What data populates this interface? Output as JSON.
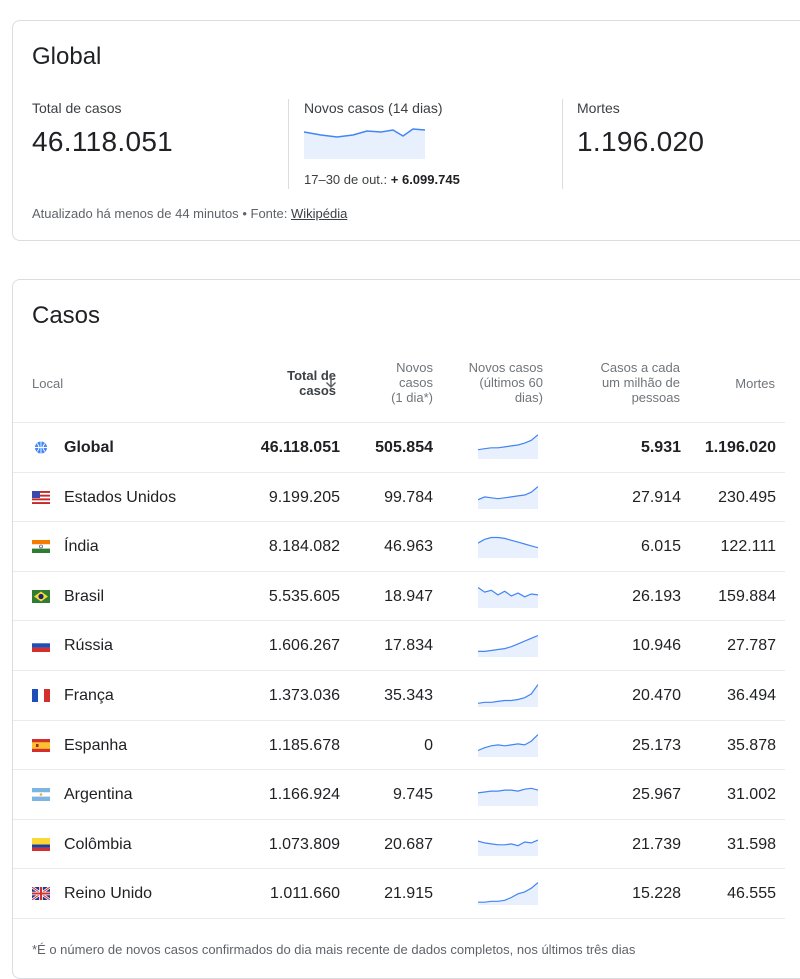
{
  "global_card": {
    "title": "Global",
    "total_label": "Total de casos",
    "total_value": "46.118.051",
    "new_label": "Novos casos (14 dias)",
    "new_range": "17–30 de out.:",
    "new_value": "+ 6.099.745",
    "deaths_label": "Mortes",
    "deaths_value": "1.196.020",
    "updated_text": "Atualizado há menos de 44 minutos",
    "separator": "•",
    "source_prefix": "Fonte:",
    "source_link": "Wikipédia"
  },
  "cases_card": {
    "title": "Casos",
    "headers": {
      "local": "Local",
      "total": [
        "Total de",
        "casos"
      ],
      "novos": [
        "Novos",
        "casos",
        "(1 dia*)"
      ],
      "novos60": [
        "Novos casos",
        "(últimos 60",
        "dias)"
      ],
      "per_million": [
        "Casos a cada",
        "um milhão de",
        "pessoas"
      ],
      "mortes": "Mortes"
    },
    "rows": [
      {
        "name": "Global",
        "total": "46.118.051",
        "new": "505.854",
        "per_million": "5.931",
        "deaths": "1.196.020",
        "flag": "globe-icon",
        "spark": [
          10,
          11,
          12,
          12,
          13,
          14,
          15,
          17,
          20,
          26
        ]
      },
      {
        "name": "Estados Unidos",
        "total": "9.199.205",
        "new": "99.784",
        "per_million": "27.914",
        "deaths": "230.495",
        "flag": "flag-us-icon",
        "spark": [
          10,
          13,
          12,
          11,
          12,
          13,
          14,
          15,
          18,
          24
        ]
      },
      {
        "name": "Índia",
        "total": "8.184.082",
        "new": "46.963",
        "per_million": "6.015",
        "deaths": "122.111",
        "flag": "flag-in-icon",
        "spark": [
          16,
          20,
          22,
          22,
          21,
          19,
          17,
          15,
          13,
          11
        ]
      },
      {
        "name": "Brasil",
        "total": "5.535.605",
        "new": "18.947",
        "per_million": "26.193",
        "deaths": "159.884",
        "flag": "flag-br-icon",
        "spark": [
          22,
          17,
          19,
          14,
          18,
          13,
          16,
          12,
          15,
          14
        ]
      },
      {
        "name": "Rússia",
        "total": "1.606.267",
        "new": "17.834",
        "per_million": "10.946",
        "deaths": "27.787",
        "flag": "flag-ru-icon",
        "spark": [
          6,
          6,
          7,
          8,
          9,
          11,
          14,
          17,
          20,
          23
        ]
      },
      {
        "name": "França",
        "total": "1.373.036",
        "new": "35.343",
        "per_million": "20.470",
        "deaths": "36.494",
        "flag": "flag-fr-icon",
        "spark": [
          4,
          5,
          5,
          6,
          7,
          7,
          8,
          10,
          14,
          24
        ]
      },
      {
        "name": "Espanha",
        "total": "1.185.678",
        "new": "0",
        "per_million": "25.173",
        "deaths": "35.878",
        "flag": "flag-es-icon",
        "spark": [
          7,
          10,
          12,
          13,
          12,
          13,
          14,
          13,
          17,
          24
        ]
      },
      {
        "name": "Argentina",
        "total": "1.166.924",
        "new": "9.745",
        "per_million": "25.967",
        "deaths": "31.002",
        "flag": "flag-ar-icon",
        "spark": [
          14,
          15,
          16,
          16,
          17,
          17,
          16,
          18,
          19,
          17
        ]
      },
      {
        "name": "Colômbia",
        "total": "1.073.809",
        "new": "20.687",
        "per_million": "21.739",
        "deaths": "31.598",
        "flag": "flag-co-icon",
        "spark": [
          16,
          14,
          13,
          12,
          12,
          13,
          11,
          15,
          14,
          17
        ]
      },
      {
        "name": "Reino Unido",
        "total": "1.011.660",
        "new": "21.915",
        "per_million": "15.228",
        "deaths": "46.555",
        "flag": "flag-gb-icon",
        "spark": [
          3,
          3,
          4,
          4,
          5,
          8,
          12,
          14,
          18,
          24
        ]
      }
    ],
    "footnote": "*É o número de novos casos confirmados do dia mais recente de dados completos, nos últimos três dias"
  },
  "colors": {
    "accent": "#4285f4",
    "spark_fill": "#e8f0fe"
  }
}
